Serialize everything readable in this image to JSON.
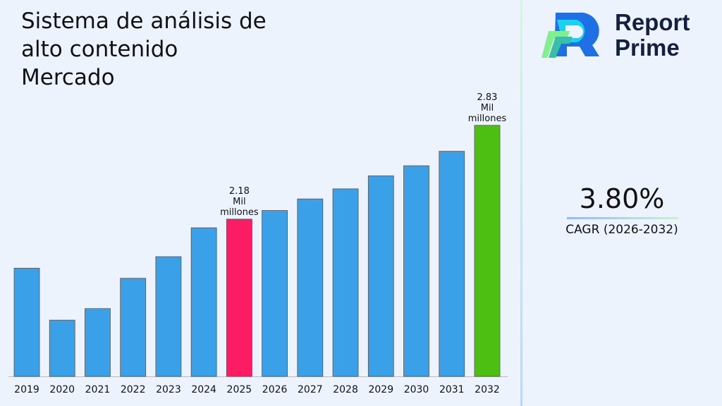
{
  "title": "Sistema de análisis de alto contenido Mercado",
  "brand": {
    "line1": "Report",
    "line2": "Prime",
    "colors": [
      "#1f6fe5",
      "#18d3f0",
      "#7ef08e",
      "#38bfa8"
    ]
  },
  "cagr": {
    "value": "3.80%",
    "label": "CAGR (2026-2032)"
  },
  "chart_data": {
    "type": "bar",
    "title": "",
    "xlabel": "",
    "ylabel": "",
    "ylim": [
      1.09,
      3.21
    ],
    "grid": false,
    "categories": [
      "2019",
      "2020",
      "2021",
      "2022",
      "2023",
      "2024",
      "2025",
      "2026",
      "2027",
      "2028",
      "2029",
      "2030",
      "2031",
      "2032"
    ],
    "values": [
      1.84,
      1.48,
      1.56,
      1.77,
      1.92,
      2.12,
      2.18,
      2.24,
      2.32,
      2.39,
      2.48,
      2.55,
      2.65,
      2.83
    ],
    "colors": {
      "default": "#3aa0e8",
      "highlight_2025": "#fc1c64",
      "highlight_2032": "#4cbf12"
    },
    "data_labels": [
      {
        "category": "2025",
        "lines": [
          "2.18",
          "Mil",
          "millones"
        ]
      },
      {
        "category": "2032",
        "lines": [
          "2.83",
          "Mil",
          "millones"
        ]
      }
    ]
  }
}
